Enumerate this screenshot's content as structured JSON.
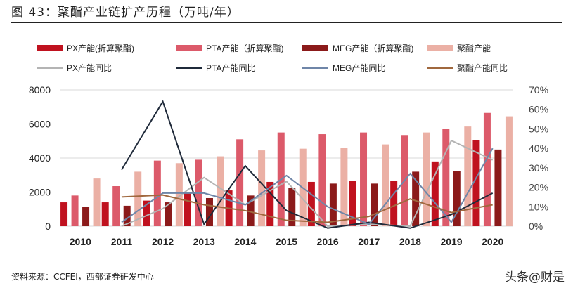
{
  "title": "图 43：聚酯产业链扩产历程（万吨/年）",
  "source": "资料来源：CCFEI，西部证券研发中心",
  "watermark": "头条@财是",
  "chart_data": {
    "type": "bar+line",
    "categories": [
      "2010",
      "2011",
      "2012",
      "2013",
      "2014",
      "2015",
      "2016",
      "2017",
      "2018",
      "2019",
      "2020"
    ],
    "y_left": {
      "range": [
        0,
        8000
      ],
      "ticks": [
        "0",
        "2000",
        "4000",
        "6000",
        "8000"
      ]
    },
    "y_right": {
      "range": [
        0,
        0.7
      ],
      "ticks": [
        "0%",
        "10%",
        "20%",
        "30%",
        "40%",
        "50%",
        "60%",
        "70%"
      ]
    },
    "grid": true,
    "legend_position": "top",
    "bar_series": [
      {
        "name": "PX产能(折算聚酯)",
        "color": "#C0121F",
        "values": [
          1400,
          1400,
          1500,
          1950,
          2100,
          2600,
          2600,
          2650,
          2650,
          3800,
          5050
        ]
      },
      {
        "name": "PTA产能（折算聚酯)",
        "color": "#DC5A6A",
        "values": [
          1800,
          2350,
          3850,
          3900,
          5100,
          5500,
          5400,
          5500,
          5350,
          5700,
          6650
        ]
      },
      {
        "name": "MEG产能（折算聚酯)",
        "color": "#8B1A1A",
        "values": [
          1150,
          1200,
          1400,
          1650,
          1800,
          2250,
          2500,
          2500,
          3200,
          3250,
          4500
        ]
      },
      {
        "name": "聚酯产能",
        "color": "#EBB0A5",
        "values": [
          2800,
          3200,
          3700,
          4100,
          4450,
          4550,
          4600,
          4800,
          5500,
          5850,
          6450
        ]
      }
    ],
    "line_series": [
      {
        "name": "PX产能同比",
        "color": "#B4B4B4",
        "values": [
          null,
          0.0,
          0.09,
          0.25,
          0.11,
          0.23,
          0.0,
          0.01,
          0.0,
          0.44,
          0.34
        ]
      },
      {
        "name": "PTA产能同比",
        "color": "#1F2A3A",
        "values": [
          null,
          0.29,
          0.64,
          0.01,
          0.31,
          0.08,
          -0.01,
          0.02,
          -0.01,
          0.06,
          0.17
        ]
      },
      {
        "name": "MEG产能同比",
        "color": "#6F86A8",
        "values": [
          null,
          0.02,
          0.17,
          0.17,
          0.11,
          0.26,
          0.1,
          0.01,
          0.27,
          0.02,
          0.4
        ]
      },
      {
        "name": "聚酯产能同比",
        "color": "#A0683E",
        "values": [
          null,
          0.15,
          0.16,
          0.11,
          0.08,
          0.03,
          0.02,
          0.05,
          0.14,
          0.07,
          0.11
        ]
      }
    ]
  }
}
